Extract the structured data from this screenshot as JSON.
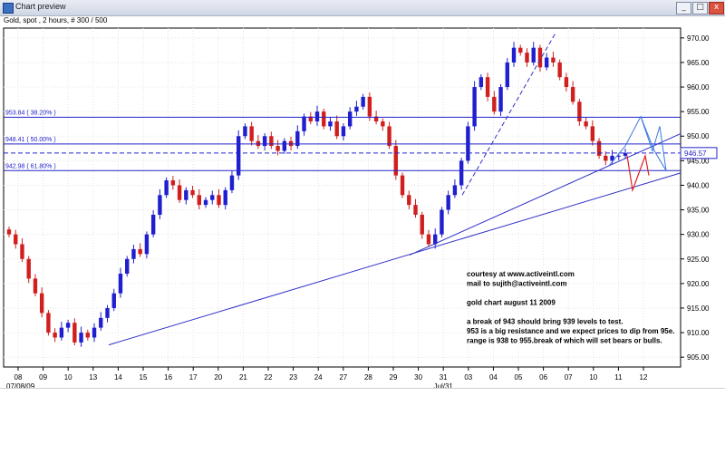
{
  "window": {
    "title": "Chart preview",
    "minimize_label": "_",
    "maximize_label": "□",
    "close_label": "x"
  },
  "header": {
    "info": "Gold, spot , 2 hours, # 300 / 500"
  },
  "chart_data": {
    "type": "candlestick",
    "y_ticks": [
      "970.00",
      "965.00",
      "960.00",
      "955.00",
      "950.00",
      "945.00",
      "940.00",
      "935.00",
      "930.00",
      "925.00",
      "920.00",
      "915.00",
      "910.00",
      "905.00"
    ],
    "y_range": [
      903,
      972
    ],
    "x_ticks": [
      "08",
      "09",
      "10",
      "13",
      "14",
      "15",
      "16",
      "17",
      "20",
      "21",
      "22",
      "23",
      "24",
      "27",
      "28",
      "29",
      "30",
      "31",
      "03",
      "04",
      "05",
      "06",
      "07",
      "10",
      "11",
      "12"
    ],
    "x_sub_labels": [
      "07/08/09",
      "Jul/31"
    ],
    "current_price": "946.57",
    "fib_levels": [
      {
        "label": "953.84 ( 38.20% )",
        "value": 953.84
      },
      {
        "label": "948.41 ( 50.00% )",
        "value": 948.41
      },
      {
        "label": "942.98 ( 61.80% )",
        "value": 942.98
      }
    ],
    "closes": [
      930,
      928,
      925,
      921,
      918,
      914,
      910,
      909,
      911,
      912,
      908,
      910,
      909,
      911,
      913,
      915,
      918,
      922,
      925,
      927,
      926,
      930,
      934,
      938,
      941,
      940,
      937,
      939,
      938,
      936,
      937,
      938,
      936,
      939,
      942,
      950,
      952,
      949,
      948,
      950,
      948,
      947,
      949,
      948,
      951,
      954,
      953,
      955,
      952,
      953,
      950,
      952,
      955,
      956,
      958,
      954,
      953,
      952,
      948,
      942,
      938,
      936,
      934,
      930,
      928,
      930,
      935,
      938,
      940,
      945,
      952,
      960,
      962,
      958,
      955,
      960,
      965,
      968,
      967,
      965,
      968,
      964,
      966,
      965,
      962,
      960,
      957,
      953,
      952,
      949,
      946,
      945,
      946,
      946,
      946.57
    ],
    "grid": true,
    "annotations": [
      "courtesy at www.activeintl.com",
      "mail to sujith@activeintl.com",
      "",
      "gold chart august 11 2009",
      "",
      "a break of 943 should bring 939 levels to test.",
      "953 is a big resistance and we expect prices to dip from 95e.",
      "range is 938 to 955.break of which will set bears or bulls."
    ]
  }
}
